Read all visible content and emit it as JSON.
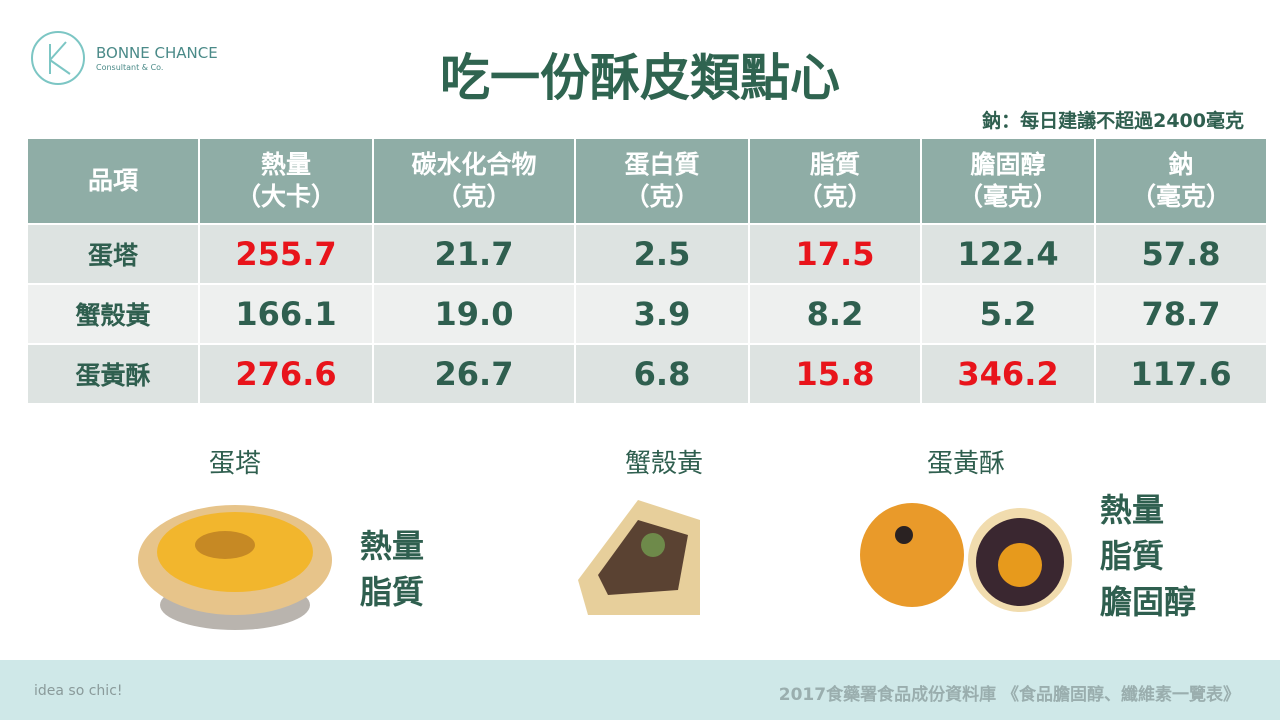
{
  "logo": {
    "name": "BONNE CHANCE",
    "tagline": "Consultant & Co."
  },
  "header": {
    "title": "吃一份酥皮類點心",
    "note": "鈉：每日建議不超過2400毫克"
  },
  "table": {
    "columns": [
      [
        "品項"
      ],
      [
        "熱量",
        "（大卡）"
      ],
      [
        "碳水化合物",
        "（克）"
      ],
      [
        "蛋白質",
        "（克）"
      ],
      [
        "脂質",
        "（克）"
      ],
      [
        "膽固醇",
        "（毫克）"
      ],
      [
        "鈉",
        "（毫克）"
      ]
    ],
    "rows": [
      [
        "蛋塔",
        "255.7",
        "21.7",
        "2.5",
        "17.5",
        "122.4",
        "57.8"
      ],
      [
        "蟹殼黃",
        "166.1",
        "19.0",
        "3.9",
        "8.2",
        "5.2",
        "78.7"
      ],
      [
        "蛋黃酥",
        "276.6",
        "26.7",
        "6.8",
        "15.8",
        "346.2",
        "117.6"
      ]
    ],
    "highlighted": [
      [
        0,
        1
      ],
      [
        0,
        4
      ],
      [
        2,
        1
      ],
      [
        2,
        4
      ],
      [
        2,
        5
      ]
    ],
    "highlight_color": "#e8141b"
  },
  "foods": [
    {
      "name": "蛋塔",
      "concerns": [
        "熱量",
        "脂質"
      ]
    },
    {
      "name": "蟹殼黃",
      "concerns": []
    },
    {
      "name": "蛋黃酥",
      "concerns": [
        "熱量",
        "脂質",
        "膽固醇"
      ]
    }
  ],
  "footer": {
    "slogan": "idea so chic!",
    "source": "2017食藥署食品成份資料庫 《食品膽固醇、纖維素一覽表》"
  }
}
